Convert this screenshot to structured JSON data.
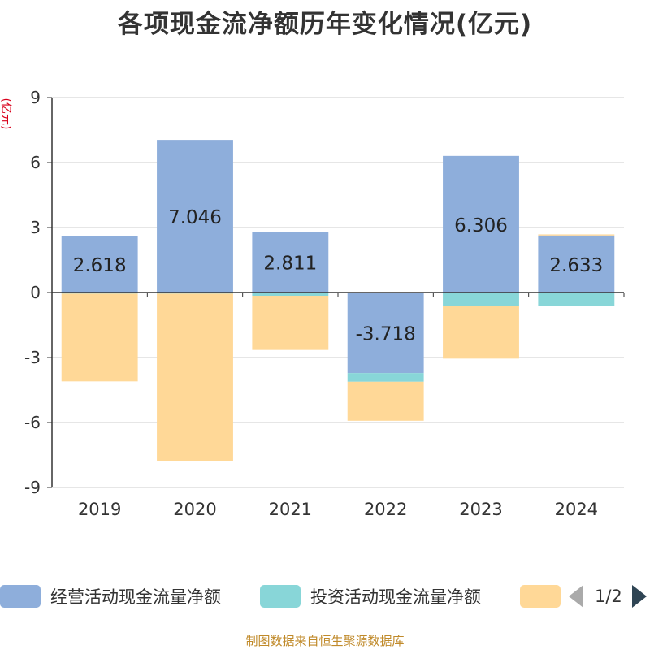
{
  "chart_data": {
    "type": "bar",
    "stacked": true,
    "title": "各项现金流净额历年变化情况(亿元)",
    "ylabel": "(亿元)",
    "categories": [
      "2019",
      "2020",
      "2021",
      "2022",
      "2023",
      "2024"
    ],
    "ylim": [
      -9,
      9
    ],
    "yticks": [
      9,
      6,
      3,
      0,
      -3,
      -6,
      -9
    ],
    "grid": true,
    "legend_position": "bottom",
    "series": [
      {
        "name": "经营活动现金流量净额",
        "color": "#8eaedb",
        "values": [
          2.618,
          7.046,
          2.811,
          -3.718,
          6.306,
          2.633
        ],
        "labels": [
          "2.618",
          "7.046",
          "2.811",
          "-3.718",
          "6.306",
          "2.633"
        ]
      },
      {
        "name": "投资活动现金流量净额",
        "color": "#88d6d8",
        "values": [
          -0.05,
          -0.05,
          -0.15,
          -0.4,
          -0.6,
          -0.6
        ]
      },
      {
        "name": "",
        "color": "#ffd897",
        "values": [
          -4.05,
          -7.75,
          -2.5,
          -1.8,
          -2.45,
          0.05
        ]
      }
    ]
  },
  "legend": {
    "items": [
      {
        "label": "经营活动现金流量净额",
        "color": "#8eaedb"
      },
      {
        "label": "投资活动现金流量净额",
        "color": "#88d6d8"
      },
      {
        "label": "",
        "color": "#ffd897"
      }
    ],
    "page": "1/2"
  },
  "footer": "制图数据来自恒生聚源数据库"
}
